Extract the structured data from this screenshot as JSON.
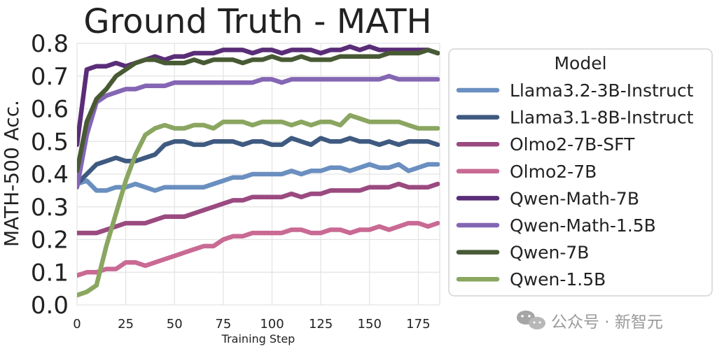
{
  "chart_data": {
    "type": "line",
    "title": "Ground Truth - MATH",
    "xlabel": "Training Step",
    "ylabel": "MATH-500 Acc.",
    "xlim": [
      0,
      186
    ],
    "ylim": [
      0,
      0.8
    ],
    "xticks": [
      0,
      25,
      50,
      75,
      100,
      125,
      150,
      175
    ],
    "xtick_labels": [
      "0",
      "25",
      "50",
      "75",
      "100",
      "125",
      "150",
      "175"
    ],
    "yticks": [
      0.0,
      0.1,
      0.2,
      0.3,
      0.4,
      0.5,
      0.6,
      0.7,
      0.8
    ],
    "ytick_labels": [
      "0.0",
      "0.1",
      "0.2",
      "0.3",
      "0.4",
      "0.5",
      "0.6",
      "0.7",
      "0.8"
    ],
    "grid": true,
    "legend": {
      "title": "Model",
      "placement": "outside-right"
    },
    "x": [
      0,
      5,
      10,
      15,
      20,
      25,
      30,
      35,
      40,
      45,
      50,
      55,
      60,
      65,
      70,
      75,
      80,
      85,
      90,
      95,
      100,
      105,
      110,
      115,
      120,
      125,
      130,
      135,
      140,
      145,
      150,
      155,
      160,
      165,
      170,
      175,
      180,
      185
    ],
    "series": [
      {
        "name": "Llama3.2-3B-Instruct",
        "color": "#6a8fc0",
        "values": [
          0.37,
          0.38,
          0.35,
          0.35,
          0.36,
          0.36,
          0.37,
          0.36,
          0.35,
          0.36,
          0.36,
          0.36,
          0.36,
          0.36,
          0.37,
          0.38,
          0.39,
          0.39,
          0.4,
          0.4,
          0.4,
          0.4,
          0.41,
          0.4,
          0.41,
          0.41,
          0.42,
          0.42,
          0.41,
          0.42,
          0.43,
          0.42,
          0.42,
          0.43,
          0.41,
          0.42,
          0.43,
          0.43
        ]
      },
      {
        "name": "Llama3.1-8B-Instruct",
        "color": "#3f5a80",
        "values": [
          0.37,
          0.4,
          0.43,
          0.44,
          0.45,
          0.44,
          0.44,
          0.45,
          0.46,
          0.49,
          0.5,
          0.5,
          0.49,
          0.49,
          0.5,
          0.5,
          0.5,
          0.49,
          0.5,
          0.5,
          0.49,
          0.49,
          0.51,
          0.5,
          0.49,
          0.51,
          0.5,
          0.5,
          0.51,
          0.5,
          0.5,
          0.49,
          0.5,
          0.49,
          0.5,
          0.5,
          0.5,
          0.49
        ]
      },
      {
        "name": "Olmo2-7B-SFT",
        "color": "#9b4a80",
        "values": [
          0.22,
          0.22,
          0.22,
          0.23,
          0.24,
          0.25,
          0.25,
          0.25,
          0.26,
          0.27,
          0.27,
          0.27,
          0.28,
          0.29,
          0.3,
          0.31,
          0.32,
          0.32,
          0.33,
          0.33,
          0.33,
          0.33,
          0.34,
          0.33,
          0.34,
          0.34,
          0.35,
          0.35,
          0.35,
          0.35,
          0.36,
          0.36,
          0.36,
          0.37,
          0.36,
          0.36,
          0.36,
          0.37
        ]
      },
      {
        "name": "Olmo2-7B",
        "color": "#c96a94",
        "values": [
          0.09,
          0.1,
          0.1,
          0.11,
          0.11,
          0.13,
          0.13,
          0.12,
          0.13,
          0.14,
          0.15,
          0.16,
          0.17,
          0.18,
          0.18,
          0.2,
          0.21,
          0.21,
          0.22,
          0.22,
          0.22,
          0.22,
          0.23,
          0.23,
          0.22,
          0.22,
          0.23,
          0.23,
          0.22,
          0.23,
          0.23,
          0.24,
          0.23,
          0.24,
          0.25,
          0.25,
          0.24,
          0.25
        ]
      },
      {
        "name": "Qwen-Math-7B",
        "color": "#5a2d78",
        "values": [
          0.49,
          0.72,
          0.73,
          0.73,
          0.74,
          0.73,
          0.74,
          0.75,
          0.76,
          0.75,
          0.76,
          0.76,
          0.77,
          0.77,
          0.77,
          0.78,
          0.78,
          0.78,
          0.77,
          0.78,
          0.78,
          0.77,
          0.78,
          0.78,
          0.78,
          0.77,
          0.78,
          0.78,
          0.79,
          0.78,
          0.79,
          0.78,
          0.78,
          0.78,
          0.78,
          0.78,
          0.78,
          0.77
        ]
      },
      {
        "name": "Qwen-Math-1.5B",
        "color": "#8466b4",
        "values": [
          0.36,
          0.52,
          0.62,
          0.64,
          0.65,
          0.66,
          0.66,
          0.67,
          0.67,
          0.67,
          0.68,
          0.68,
          0.68,
          0.68,
          0.68,
          0.68,
          0.68,
          0.68,
          0.68,
          0.69,
          0.69,
          0.68,
          0.69,
          0.69,
          0.69,
          0.69,
          0.69,
          0.69,
          0.69,
          0.69,
          0.69,
          0.69,
          0.7,
          0.69,
          0.69,
          0.69,
          0.69,
          0.69
        ]
      },
      {
        "name": "Qwen-7B",
        "color": "#485a34",
        "values": [
          0.41,
          0.56,
          0.63,
          0.66,
          0.7,
          0.72,
          0.74,
          0.75,
          0.75,
          0.74,
          0.74,
          0.74,
          0.75,
          0.74,
          0.75,
          0.75,
          0.75,
          0.74,
          0.75,
          0.75,
          0.76,
          0.75,
          0.75,
          0.76,
          0.75,
          0.75,
          0.75,
          0.76,
          0.76,
          0.76,
          0.76,
          0.76,
          0.77,
          0.77,
          0.77,
          0.77,
          0.78,
          0.77
        ]
      },
      {
        "name": "Qwen-1.5B",
        "color": "#8aa660",
        "values": [
          0.03,
          0.04,
          0.06,
          0.18,
          0.28,
          0.38,
          0.46,
          0.52,
          0.54,
          0.55,
          0.54,
          0.54,
          0.55,
          0.55,
          0.54,
          0.56,
          0.56,
          0.56,
          0.55,
          0.56,
          0.56,
          0.56,
          0.55,
          0.56,
          0.55,
          0.56,
          0.56,
          0.55,
          0.58,
          0.57,
          0.56,
          0.56,
          0.56,
          0.56,
          0.55,
          0.54,
          0.54,
          0.54
        ]
      }
    ]
  },
  "watermark": {
    "text": "公众号 · 新智元"
  }
}
